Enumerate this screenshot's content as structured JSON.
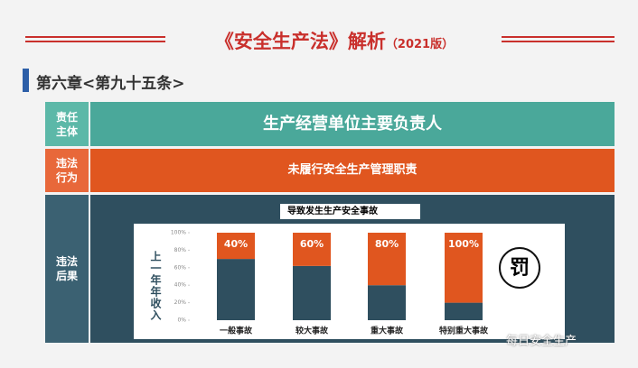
{
  "header": {
    "title": "《安全生产法》解析",
    "edition": "（2021版）"
  },
  "section": "第六章<第九十五条>",
  "table": {
    "rows": [
      [
        "责任主体",
        "生产经营单位主要负责人"
      ],
      [
        "违法行为",
        "未履行安全生产管理职责"
      ],
      [
        "违法后果",
        "导致发生生产安全事故"
      ]
    ]
  },
  "chart_data": {
    "type": "bar",
    "stacked": true,
    "categories": [
      "一般事故",
      "较大事故",
      "重大事故",
      "特别重大事故"
    ],
    "series": [
      {
        "color": "#2f4f5f",
        "values": [
          70,
          62,
          40,
          20
        ]
      },
      {
        "color": "#e0561f",
        "values": [
          30,
          38,
          60,
          80
        ]
      }
    ],
    "annotations": [
      "40%",
      "60%",
      "80%",
      "100%"
    ],
    "ylabel": "上一年年收入",
    "ylim": [
      0,
      100
    ],
    "yticks": [
      {
        "value": 0,
        "label": "0%"
      },
      {
        "value": 20,
        "label": "20%"
      },
      {
        "value": 40,
        "label": "40%"
      },
      {
        "value": 60,
        "label": "60%"
      },
      {
        "value": 80,
        "label": "80%"
      },
      {
        "value": 100,
        "label": "100%"
      }
    ]
  },
  "icon_text": "罚",
  "watermark": "每日安全生产"
}
